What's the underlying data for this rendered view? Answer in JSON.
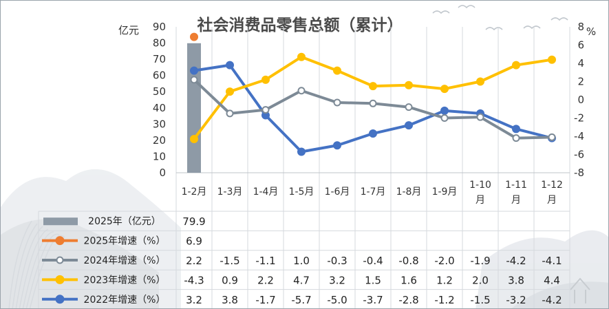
{
  "chart_data": {
    "type": "bar+line+table",
    "title": "社会消费品零售总额（累计）",
    "left_unit": "亿元",
    "right_unit": "%",
    "left_axis": {
      "min": 0,
      "max": 90,
      "ticks": [
        "0",
        "10",
        "20",
        "30",
        "40",
        "50",
        "60",
        "70",
        "80",
        "90"
      ]
    },
    "right_axis": {
      "min": -8,
      "max": 8,
      "ticks": [
        "-8",
        "-6",
        "-4",
        "-2",
        "0",
        "2",
        "4",
        "6",
        "8"
      ]
    },
    "categories": [
      "1-2月",
      "1-3月",
      "1-4月",
      "1-5月",
      "1-6月",
      "1-7月",
      "1-8月",
      "1-9月",
      "1-10月",
      "1-11月",
      "1-12月"
    ],
    "gridlines": "vertical",
    "legend": "table-below",
    "series": [
      {
        "name": "2025年（亿元）",
        "type": "bar",
        "axis": "left",
        "color": "#8e9aa6",
        "values": [
          79.9,
          null,
          null,
          null,
          null,
          null,
          null,
          null,
          null,
          null,
          null
        ],
        "labels": [
          "79.9",
          "",
          "",
          "",
          "",
          "",
          "",
          "",
          "",
          "",
          ""
        ]
      },
      {
        "name": "2025年增速（%）",
        "type": "line",
        "axis": "right",
        "color": "#ee7d31",
        "marker": "filled",
        "values": [
          6.9,
          null,
          null,
          null,
          null,
          null,
          null,
          null,
          null,
          null,
          null
        ],
        "labels": [
          "6.9",
          "",
          "",
          "",
          "",
          "",
          "",
          "",
          "",
          "",
          ""
        ]
      },
      {
        "name": "2024年增速（%）",
        "type": "line",
        "axis": "right",
        "color": "#7d8a96",
        "marker": "hollow",
        "values": [
          2.2,
          -1.5,
          -1.1,
          1.0,
          -0.3,
          -0.4,
          -0.8,
          -2.0,
          -1.9,
          -4.2,
          -4.1
        ],
        "labels": [
          "2.2",
          "-1.5",
          "-1.1",
          "1.0",
          "-0.3",
          "-0.4",
          "-0.8",
          "-2.0",
          "-1.9",
          "-4.2",
          "-4.1"
        ]
      },
      {
        "name": "2023年增速（%）",
        "type": "line",
        "axis": "right",
        "color": "#ffc000",
        "marker": "filled",
        "values": [
          -4.3,
          0.9,
          2.2,
          4.7,
          3.2,
          1.5,
          1.6,
          1.2,
          2.0,
          3.8,
          4.4
        ],
        "labels": [
          "-4.3",
          "0.9",
          "2.2",
          "4.7",
          "3.2",
          "1.5",
          "1.6",
          "1.2",
          "2.0",
          "3.8",
          "4.4"
        ]
      },
      {
        "name": "2022年增速（%）",
        "type": "line",
        "axis": "right",
        "color": "#4472c4",
        "marker": "filled",
        "values": [
          3.2,
          3.8,
          -1.7,
          -5.7,
          -5.0,
          -3.7,
          -2.8,
          -1.2,
          -1.5,
          -3.2,
          -4.2
        ],
        "labels": [
          "3.2",
          "3.8",
          "-1.7",
          "-5.7",
          "-5.0",
          "-3.7",
          "-2.8",
          "-1.2",
          "-1.5",
          "-3.2",
          "-4.2"
        ]
      }
    ]
  }
}
